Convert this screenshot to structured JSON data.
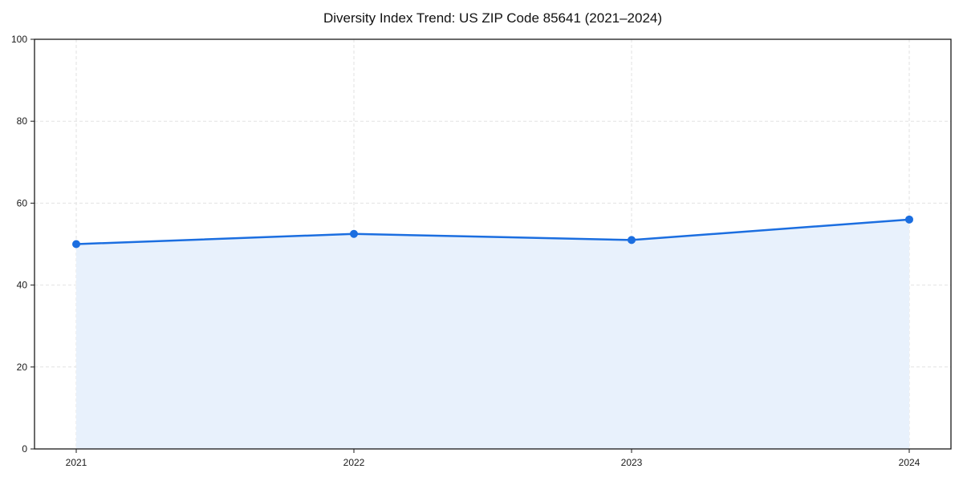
{
  "chart_data": {
    "type": "area",
    "title": "Diversity Index Trend: US ZIP Code 85641 (2021–2024)",
    "categories": [
      "2021",
      "2022",
      "2023",
      "2024"
    ],
    "series": [
      {
        "name": "Diversity Index",
        "values": [
          50,
          52.5,
          51,
          56
        ]
      }
    ],
    "xlabel": "",
    "ylabel": "",
    "ylim": [
      0,
      100
    ],
    "yticks": [
      0,
      20,
      40,
      60,
      80,
      100
    ],
    "grid": true,
    "grid_style": "dashed",
    "legend_position": "none",
    "marker": "circle",
    "colors": {
      "line": "#1b6ee0",
      "marker": "#1b6ee0",
      "fill": "#e8f1fc",
      "grid": "#e2e2e2",
      "spine": "#1a1a1a",
      "text": "#1a1a1a",
      "background": "#ffffff"
    }
  }
}
